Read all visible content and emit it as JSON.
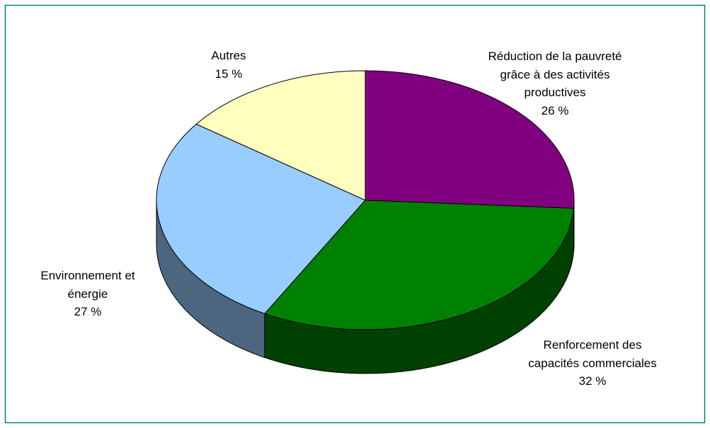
{
  "chart_data": {
    "type": "pie",
    "categories": [
      "Réduction de la pauvreté grâce à des activités productives",
      "Renforcement des capacités commerciales",
      "Environnement et énergie",
      "Autres"
    ],
    "values": [
      26,
      32,
      27,
      15
    ],
    "value_labels": [
      "26 %",
      "32 %",
      "27 %",
      "15 %"
    ],
    "colors": [
      "#800080",
      "#008000",
      "#99ccff",
      "#ffffc0"
    ]
  }
}
